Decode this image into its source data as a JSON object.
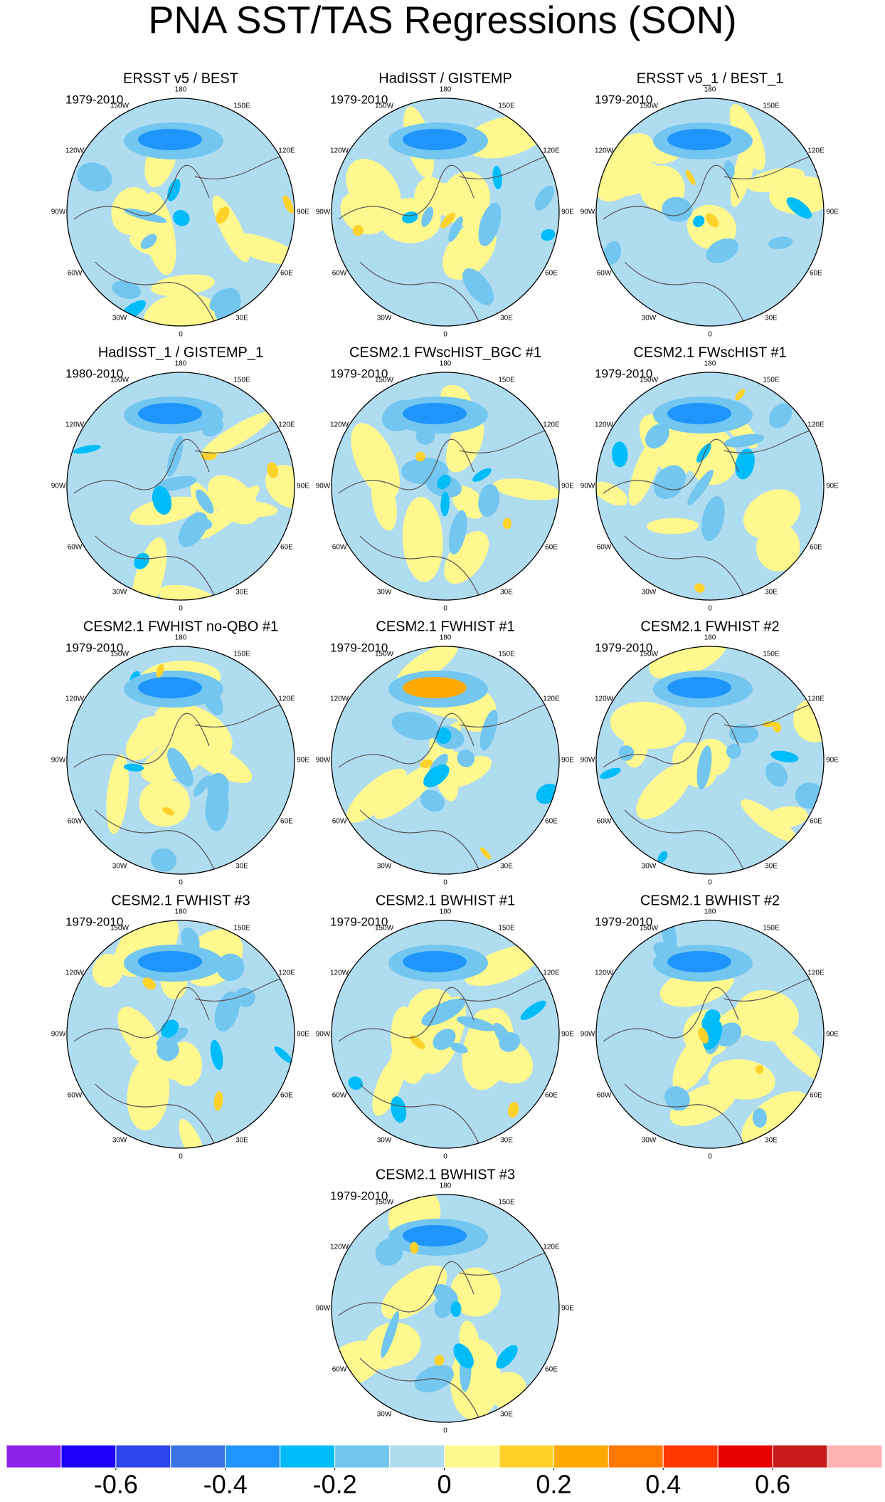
{
  "title": "PNA SST/TAS Regressions (SON)",
  "panels": [
    {
      "title": "ERSST v5 / BEST",
      "period": "1979-2010"
    },
    {
      "title": "HadISST / GISTEMP",
      "period": "1979-2010"
    },
    {
      "title": "ERSST v5_1 / BEST_1",
      "period": "1979-2010"
    },
    {
      "title": "HadISST_1 / GISTEMP_1",
      "period": "1980-2010"
    },
    {
      "title": "CESM2.1 FWscHIST_BGC #1",
      "period": "1979-2010"
    },
    {
      "title": "CESM2.1 FWscHIST #1",
      "period": "1979-2010"
    },
    {
      "title": "CESM2.1 FWHIST no-QBO #1",
      "period": "1979-2010"
    },
    {
      "title": "CESM2.1 FWHIST #1",
      "period": "1979-2010"
    },
    {
      "title": "CESM2.1 FWHIST #2",
      "period": "1979-2010"
    },
    {
      "title": "CESM2.1 FWHIST #3",
      "period": "1979-2010"
    },
    {
      "title": "CESM2.1 BWHIST #1",
      "period": "1979-2010"
    },
    {
      "title": "CESM2.1 BWHIST #2",
      "period": "1979-2010"
    },
    {
      "title": "CESM2.1 BWHIST #3",
      "period": "1979-2010"
    }
  ],
  "lon_labels": [
    "180",
    "150E",
    "120E",
    "90E",
    "60E",
    "30E",
    "0",
    "30W",
    "60W",
    "90W",
    "120W",
    "150W"
  ],
  "colorbar": {
    "colors": [
      "#8d22ea",
      "#1c00fa",
      "#2c45ea",
      "#3a74e2",
      "#1f95fb",
      "#00bdfa",
      "#72c6ef",
      "#b0dcf0",
      "#fff88e",
      "#ffd22b",
      "#ffa800",
      "#ff7800",
      "#ff3800",
      "#e80000",
      "#c81c1c",
      "#ffb2b2"
    ],
    "lim": [
      -0.8,
      0.8
    ],
    "ticks": [
      -0.6,
      -0.4,
      -0.2,
      0,
      0.2,
      0.4,
      0.6
    ]
  }
}
